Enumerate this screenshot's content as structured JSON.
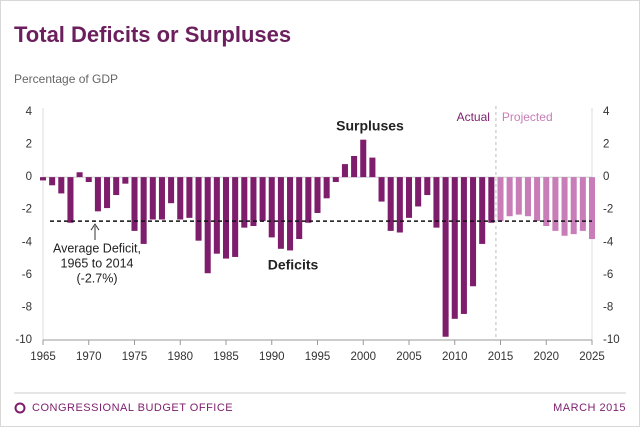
{
  "chart_data": {
    "type": "bar",
    "title": "Total Deficits or Surpluses",
    "subtitle": "Percentage of GDP",
    "x": [
      1965,
      1966,
      1967,
      1968,
      1969,
      1970,
      1971,
      1972,
      1973,
      1974,
      1975,
      1976,
      1977,
      1978,
      1979,
      1980,
      1981,
      1982,
      1983,
      1984,
      1985,
      1986,
      1987,
      1988,
      1989,
      1990,
      1991,
      1992,
      1993,
      1994,
      1995,
      1996,
      1997,
      1998,
      1999,
      2000,
      2001,
      2002,
      2003,
      2004,
      2005,
      2006,
      2007,
      2008,
      2009,
      2010,
      2011,
      2012,
      2013,
      2014,
      2015,
      2016,
      2017,
      2018,
      2019,
      2020,
      2021,
      2022,
      2023,
      2024,
      2025
    ],
    "series": [
      {
        "name": "Actual",
        "color": "#7d1d6c",
        "values": [
          -0.2,
          -0.5,
          -1.0,
          -2.8,
          0.3,
          -0.3,
          -2.1,
          -1.9,
          -1.1,
          -0.4,
          -3.3,
          -4.1,
          -2.6,
          -2.6,
          -1.6,
          -2.6,
          -2.5,
          -3.9,
          -5.9,
          -4.7,
          -5.0,
          -4.9,
          -3.1,
          -3.0,
          -2.7,
          -3.7,
          -4.4,
          -4.5,
          -3.8,
          -2.8,
          -2.2,
          -1.3,
          -0.3,
          0.8,
          1.3,
          2.3,
          1.2,
          -1.5,
          -3.3,
          -3.4,
          -2.5,
          -1.8,
          -1.1,
          -3.1,
          -9.8,
          -8.7,
          -8.4,
          -6.7,
          -4.1,
          -2.8,
          null,
          null,
          null,
          null,
          null,
          null,
          null,
          null,
          null,
          null,
          null
        ]
      },
      {
        "name": "Projected",
        "color": "#c97db8",
        "values": [
          null,
          null,
          null,
          null,
          null,
          null,
          null,
          null,
          null,
          null,
          null,
          null,
          null,
          null,
          null,
          null,
          null,
          null,
          null,
          null,
          null,
          null,
          null,
          null,
          null,
          null,
          null,
          null,
          null,
          null,
          null,
          null,
          null,
          null,
          null,
          null,
          null,
          null,
          null,
          null,
          null,
          null,
          null,
          null,
          null,
          null,
          null,
          null,
          null,
          null,
          -2.7,
          -2.4,
          -2.3,
          -2.4,
          -2.7,
          -3.0,
          -3.3,
          -3.6,
          -3.5,
          -3.3,
          -3.8
        ]
      }
    ],
    "xlim": [
      1965,
      2025
    ],
    "xticks": [
      1965,
      1970,
      1975,
      1980,
      1985,
      1990,
      1995,
      2000,
      2005,
      2010,
      2015,
      2020,
      2025
    ],
    "ylim": [
      -10,
      4
    ],
    "yticks": [
      4,
      2,
      0,
      -2,
      -4,
      -6,
      -8,
      -10
    ],
    "y2lim": [
      -10,
      4
    ],
    "y2ticks": [
      4,
      2,
      0,
      -2,
      -4,
      -6,
      -8,
      -10
    ],
    "reference_line": -2.7,
    "annotations": {
      "surpluses": "Surpluses",
      "deficits": "Deficits",
      "average": [
        "Average Deficit,",
        "1965 to 2014",
        "(-2.7%)"
      ]
    }
  },
  "footer": {
    "left": "CONGRESSIONAL BUDGET OFFICE",
    "right": "MARCH 2015"
  }
}
